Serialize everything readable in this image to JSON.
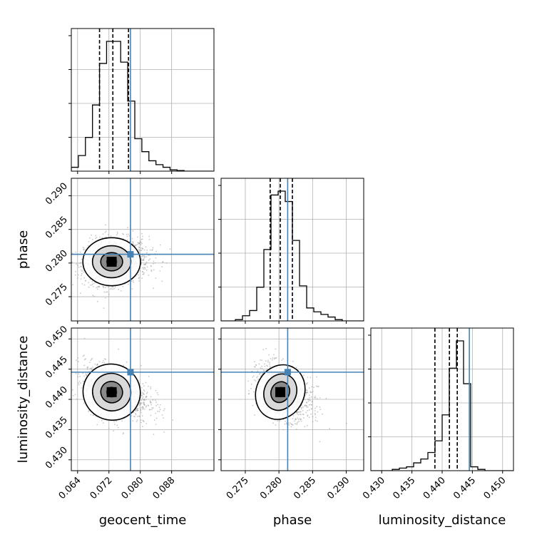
{
  "chart_data": {
    "type": "corner",
    "parameters": [
      "geocent_time",
      "phase",
      "luminosity_distance"
    ],
    "axes": {
      "geocent_time": {
        "range": [
          0.0624,
          0.0988
        ],
        "ticks": [
          0.064,
          0.072,
          0.08,
          0.088
        ],
        "tick_labels": [
          "0.064",
          "0.072",
          "0.080",
          "0.088"
        ]
      },
      "phase": {
        "range": [
          0.2714,
          0.2926
        ],
        "ticks": [
          0.275,
          0.28,
          0.285,
          0.29
        ],
        "tick_labels": [
          "0.275",
          "0.280",
          "0.285",
          "0.290"
        ]
      },
      "luminosity_distance": {
        "range": [
          0.4282,
          0.4518
        ],
        "ticks": [
          0.43,
          0.435,
          0.44,
          0.445,
          0.45
        ],
        "tick_labels": [
          "0.430",
          "0.435",
          "0.440",
          "0.445",
          "0.450"
        ]
      }
    },
    "truths": {
      "geocent_time": 0.0775,
      "phase": 0.2813,
      "luminosity_distance": 0.4445
    },
    "quantiles": {
      "geocent_time": [
        0.0696,
        0.073,
        0.077
      ],
      "phase": [
        0.2787,
        0.2802,
        0.282
      ],
      "luminosity_distance": [
        0.4388,
        0.4412,
        0.4425
      ]
    },
    "histograms": {
      "geocent_time": {
        "edges_start": 0.0624,
        "bin_width": 0.0018,
        "counts": [
          0.03,
          0.12,
          0.26,
          0.51,
          0.83,
          1.0,
          1.0,
          0.84,
          0.54,
          0.25,
          0.15,
          0.08,
          0.05,
          0.03,
          0.01,
          0.005,
          0,
          0,
          0,
          0
        ]
      },
      "phase": {
        "edges_start": 0.2714,
        "bin_width": 0.00106,
        "counts": [
          0,
          0,
          0.01,
          0.04,
          0.08,
          0.26,
          0.55,
          0.97,
          1.0,
          0.92,
          0.62,
          0.27,
          0.1,
          0.07,
          0.05,
          0.03,
          0.01,
          0,
          0,
          0
        ]
      },
      "luminosity_distance": {
        "edges_start": 0.4282,
        "bin_width": 0.00118,
        "counts": [
          0,
          0,
          0,
          0.01,
          0.02,
          0.03,
          0.06,
          0.09,
          0.14,
          0.23,
          0.43,
          0.79,
          1.0,
          0.67,
          0.03,
          0.01,
          0,
          0,
          0,
          0
        ]
      }
    },
    "posterior_summary": {
      "geocent_time": {
        "mean": 0.0727,
        "std": 0.0035
      },
      "phase": {
        "mean": 0.2802,
        "std": 0.0017
      },
      "luminosity_distance": {
        "mean": 0.4412,
        "std": 0.0022
      }
    },
    "colors": {
      "truth": "#4682b4",
      "contour": "#000000",
      "samples": "#9a9a9a",
      "grid": "#b0b0b0"
    },
    "grid": true
  },
  "labels": {
    "x_geocent_time": "geocent_time",
    "x_phase": "phase",
    "x_luminosity_distance": "luminosity_distance",
    "y_phase": "phase",
    "y_luminosity_distance": "luminosity_distance"
  }
}
